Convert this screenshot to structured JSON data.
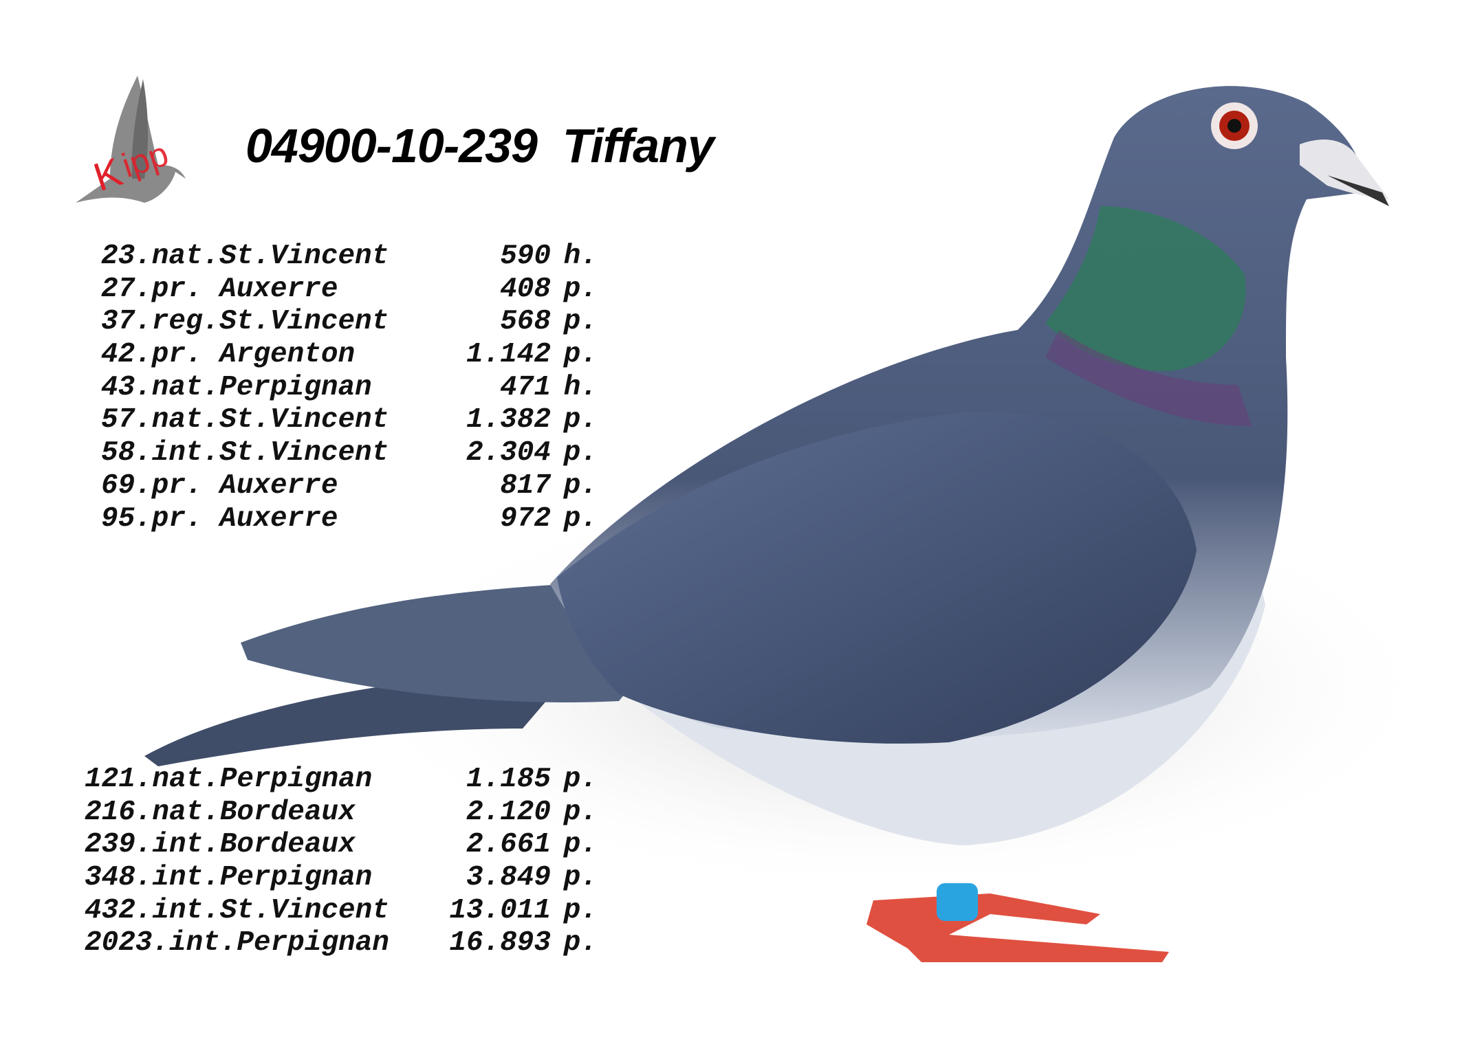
{
  "logo": {
    "text": "Kipp",
    "colors": {
      "bird": "#8a8a8a",
      "letters": "#e0202a"
    }
  },
  "title": "04900-10-239  Tiffany",
  "top_results": [
    {
      "place": "23.nat.St.Vincent",
      "count": "590",
      "unit": "h."
    },
    {
      "place": "27.pr. Auxerre",
      "count": "408",
      "unit": "p."
    },
    {
      "place": "37.reg.St.Vincent",
      "count": "568",
      "unit": "p."
    },
    {
      "place": "42.pr. Argenton",
      "count": "1.142",
      "unit": "p."
    },
    {
      "place": "43.nat.Perpignan",
      "count": "471",
      "unit": "h."
    },
    {
      "place": "57.nat.St.Vincent",
      "count": "1.382",
      "unit": "p."
    },
    {
      "place": "58.int.St.Vincent",
      "count": "2.304",
      "unit": "p."
    },
    {
      "place": "69.pr. Auxerre",
      "count": "817",
      "unit": "p."
    },
    {
      "place": "95.pr. Auxerre",
      "count": "972",
      "unit": "p."
    }
  ],
  "bottom_results": [
    {
      "place": "121.nat.Perpignan",
      "count": "1.185",
      "unit": "p."
    },
    {
      "place": "216.nat.Bordeaux",
      "count": "2.120",
      "unit": "p."
    },
    {
      "place": "239.int.Bordeaux",
      "count": "2.661",
      "unit": "p."
    },
    {
      "place": "348.int.Perpignan",
      "count": "3.849",
      "unit": "p."
    },
    {
      "place": "432.int.St.Vincent",
      "count": "13.011",
      "unit": "p."
    },
    {
      "place": "2023.int.Perpignan",
      "count": "16.893",
      "unit": "p."
    }
  ]
}
